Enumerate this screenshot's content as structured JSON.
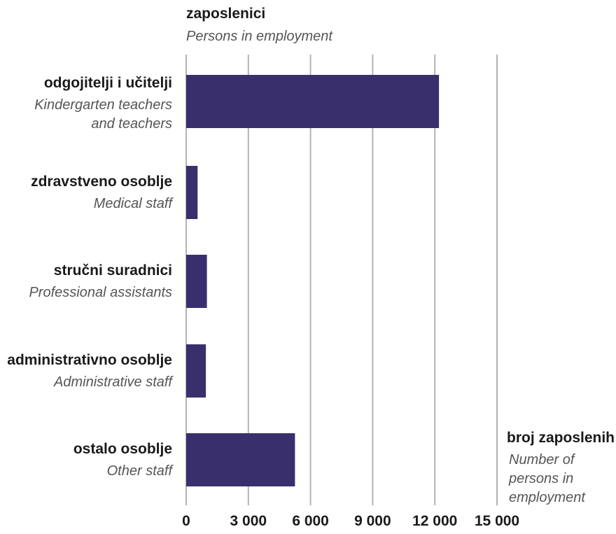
{
  "chart_data": {
    "type": "bar",
    "orientation": "horizontal",
    "title": "zaposlenici",
    "subtitle": "Persons in employment",
    "xlabel": "broj zaposlenih",
    "xlabel_en": [
      "Number of",
      "persons in",
      "employment"
    ],
    "categories": [
      {
        "label": "odgojitelji i učitelji",
        "label_en": [
          "Kindergarten teachers",
          "and teachers"
        ]
      },
      {
        "label": "zdravstveno osoblje",
        "label_en": [
          "Medical staff"
        ]
      },
      {
        "label": "stručni suradnici",
        "label_en": [
          "Professional assistants"
        ]
      },
      {
        "label": "administrativno osoblje",
        "label_en": [
          "Administrative staff"
        ]
      },
      {
        "label": "ostalo osoblje",
        "label_en": [
          "Other staff"
        ]
      }
    ],
    "values": [
      12200,
      550,
      1000,
      950,
      5250
    ],
    "xlim": [
      0,
      15000
    ],
    "xticks": [
      0,
      3000,
      6000,
      9000,
      12000,
      15000
    ],
    "xtick_labels": [
      "0",
      "3 000",
      "6 000",
      "9 000",
      "12 000",
      "15 000"
    ],
    "grid": true,
    "bar_color": "#3a2f6d"
  }
}
